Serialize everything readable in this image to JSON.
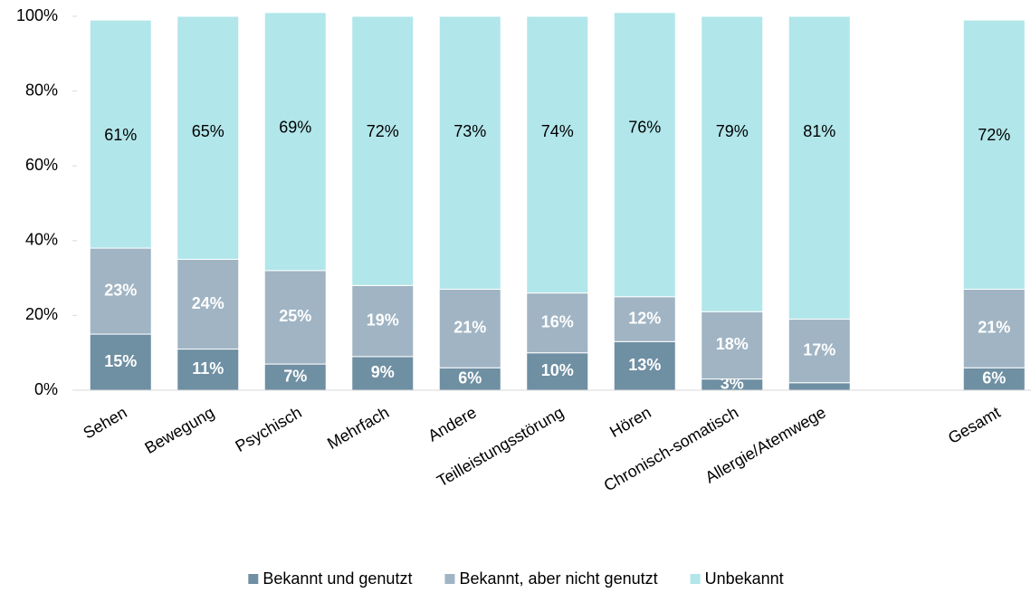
{
  "chart_data": {
    "type": "stacked-bar",
    "categories": [
      "Sehen",
      "Bewegung",
      "Psychisch",
      "Mehrfach",
      "Andere",
      "Teilleistungsstörung",
      "Hören",
      "Chronisch-somatisch",
      "Allergie/Atemwege",
      null,
      "Gesamt"
    ],
    "series": [
      {
        "name": "Bekannt und genutzt",
        "color": "#6f8fa3",
        "values": [
          15,
          11,
          7,
          9,
          6,
          10,
          13,
          3,
          2,
          null,
          6
        ],
        "value_labels": [
          "15%",
          "11%",
          "7%",
          "9%",
          "6%",
          "10%",
          "13%",
          "3%",
          null,
          null,
          "6%"
        ]
      },
      {
        "name": "Bekannt, aber nicht genutzt",
        "color": "#a0b4c3",
        "values": [
          23,
          24,
          25,
          19,
          21,
          16,
          12,
          18,
          17,
          null,
          21
        ],
        "value_labels": [
          "23%",
          "24%",
          "25%",
          "19%",
          "21%",
          "16%",
          "12%",
          "18%",
          "17%",
          null,
          "21%"
        ]
      },
      {
        "name": "Unbekannt",
        "color": "#b1e6ea",
        "values": [
          61,
          65,
          69,
          72,
          73,
          74,
          76,
          79,
          81,
          null,
          72
        ],
        "value_labels": [
          "61%",
          "65%",
          "69%",
          "72%",
          "73%",
          "74%",
          "76%",
          "79%",
          "81%",
          null,
          "72%"
        ]
      }
    ],
    "ylim": [
      0,
      100
    ],
    "yticks": [
      {
        "value": 0,
        "label": "0%"
      },
      {
        "value": 20,
        "label": "20%"
      },
      {
        "value": 40,
        "label": "40%"
      },
      {
        "value": 60,
        "label": "60%"
      },
      {
        "value": 80,
        "label": "80%"
      },
      {
        "value": 100,
        "label": "100%"
      }
    ],
    "grid": false,
    "legend": "bottom"
  }
}
